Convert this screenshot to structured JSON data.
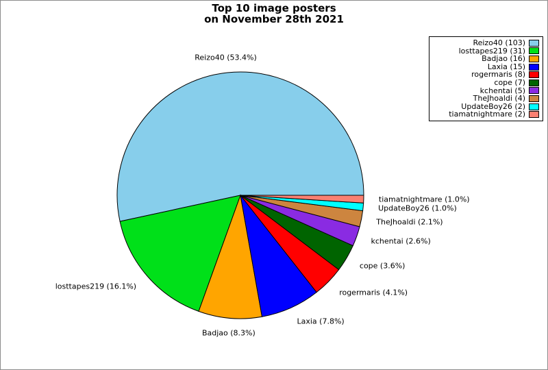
{
  "title": {
    "line1": "Top 10 image posters",
    "line2": "on November 28th 2021"
  },
  "chart_data": {
    "type": "pie",
    "title": "Top 10 image posters\non November 28th 2021",
    "start_angle_deg": 0,
    "direction": "counterclockwise",
    "legend_position": "upper right",
    "edge_color": "#000000",
    "series": [
      {
        "name": "Reizo40",
        "count": 103,
        "percent": 53.4,
        "color": "#87ceeb",
        "slice_label": "Reizo40 (53.4%)",
        "legend_label": "Reizo40 (103)"
      },
      {
        "name": "losttapes219",
        "count": 31,
        "percent": 16.1,
        "color": "#00e019",
        "slice_label": "losttapes219 (16.1%)",
        "legend_label": "losttapes219 (31)"
      },
      {
        "name": "Badjao",
        "count": 16,
        "percent": 8.3,
        "color": "#ffa500",
        "slice_label": "Badjao (8.3%)",
        "legend_label": "Badjao (16)"
      },
      {
        "name": "Laxia",
        "count": 15,
        "percent": 7.8,
        "color": "#0000ff",
        "slice_label": "Laxia (7.8%)",
        "legend_label": "Laxia (15)"
      },
      {
        "name": "rogermaris",
        "count": 8,
        "percent": 4.1,
        "color": "#ff0000",
        "slice_label": "rogermaris (4.1%)",
        "legend_label": "rogermaris (8)"
      },
      {
        "name": "cope",
        "count": 7,
        "percent": 3.6,
        "color": "#006400",
        "slice_label": "cope (3.6%)",
        "legend_label": "cope (7)"
      },
      {
        "name": "kchentai",
        "count": 5,
        "percent": 2.6,
        "color": "#8a2be2",
        "slice_label": "kchentai (2.6%)",
        "legend_label": "kchentai (5)"
      },
      {
        "name": "TheJhoaldi",
        "count": 4,
        "percent": 2.1,
        "color": "#cd853f",
        "slice_label": "TheJhoaldi (2.1%)",
        "legend_label": "TheJhoaldi (4)"
      },
      {
        "name": "UpdateBoy26",
        "count": 2,
        "percent": 1.0,
        "color": "#00ffff",
        "slice_label": "UpdateBoy26 (1.0%)",
        "legend_label": "UpdateBoy26 (2)"
      },
      {
        "name": "tiamatnightmare",
        "count": 2,
        "percent": 1.0,
        "color": "#fa8072",
        "slice_label": "tiamatnightmare (1.0%)",
        "legend_label": "tiamatnightmare (2)"
      }
    ]
  }
}
